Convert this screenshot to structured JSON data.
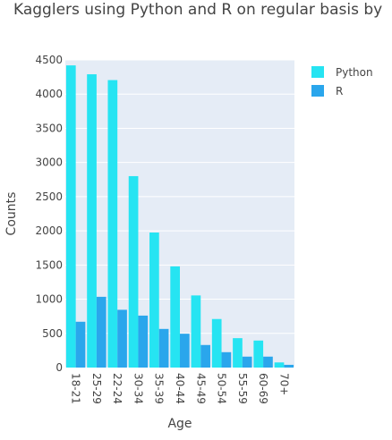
{
  "chart_data": {
    "type": "bar",
    "title": "Kagglers using Python and R on regular basis by",
    "xlabel": "Age",
    "ylabel": "Counts",
    "categories": [
      "18-21",
      "25-29",
      "22-24",
      "30-34",
      "35-39",
      "40-44",
      "45-49",
      "50-54",
      "55-59",
      "60-69",
      "70+"
    ],
    "series": [
      {
        "name": "Python",
        "color": "#26e4f2",
        "values": [
          4420,
          4290,
          4205,
          2800,
          1975,
          1480,
          1055,
          710,
          430,
          395,
          75
        ]
      },
      {
        "name": "R",
        "color": "#2aa6ec",
        "values": [
          670,
          1035,
          845,
          760,
          565,
          495,
          330,
          225,
          160,
          160,
          40
        ]
      }
    ],
    "ylim": [
      0,
      4500
    ],
    "yticks": [
      0,
      500,
      1000,
      1500,
      2000,
      2500,
      3000,
      3500,
      4000,
      4500
    ],
    "grid": true,
    "legend_position": "top-right",
    "plot_background": "#e5ecf6"
  }
}
